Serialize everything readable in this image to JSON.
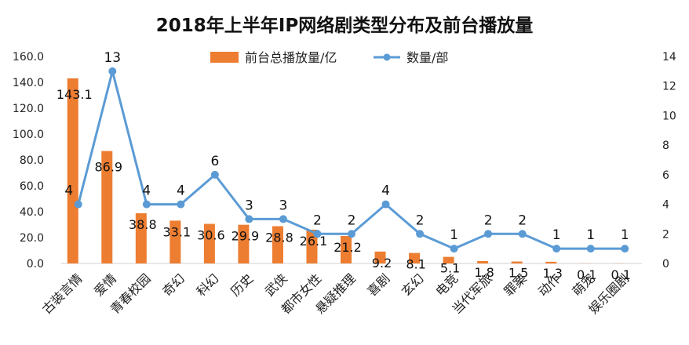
{
  "chart_data": {
    "type": "bar",
    "title": "2018年上半年IP网络剧类型分布及前台播放量",
    "categories": [
      "古装言情",
      "爱情",
      "青春校园",
      "奇幻",
      "科幻",
      "历史",
      "武侠",
      "都市女性",
      "悬疑推理",
      "喜剧",
      "玄幻",
      "电竞",
      "当代军旅",
      "罪案",
      "动作",
      "萌宠",
      "娱乐圈剧"
    ],
    "series": [
      {
        "name": "前台总播放量/亿",
        "type": "bar",
        "axis": "left",
        "color": "#ED7D31",
        "values": [
          143.1,
          86.9,
          38.8,
          33.1,
          30.6,
          29.9,
          28.8,
          26.1,
          21.2,
          9.2,
          8.1,
          5.1,
          1.8,
          1.5,
          1.3,
          0.1,
          0.1
        ],
        "labels": [
          "143.1",
          "86.9",
          "38.8",
          "33.1",
          "30.6",
          "29.9",
          "28.8",
          "26.1",
          "21.2",
          "9.2",
          "8.1",
          "5.1",
          "1.8",
          "1.5",
          "1.3",
          "0.1",
          "0.1"
        ]
      },
      {
        "name": "数量/部",
        "type": "line",
        "axis": "right",
        "color": "#5B9BD5",
        "values": [
          4,
          13,
          4,
          4,
          6,
          3,
          3,
          2,
          2,
          4,
          2,
          1,
          2,
          2,
          1,
          1,
          1
        ]
      }
    ],
    "y_left": {
      "min": 0,
      "max": 160,
      "ticks": [
        "0.0",
        "20.0",
        "40.0",
        "60.0",
        "80.0",
        "100.0",
        "120.0",
        "140.0",
        "160.0"
      ]
    },
    "y_right": {
      "min": 0,
      "max": 14,
      "ticks": [
        "0",
        "2",
        "4",
        "6",
        "8",
        "10",
        "12",
        "14"
      ]
    },
    "legend_position": "top-center",
    "grid": false
  }
}
